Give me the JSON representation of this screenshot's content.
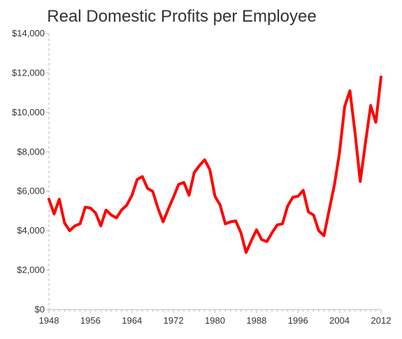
{
  "chart_data": {
    "type": "line",
    "title": "Real Domestic Profits per Employee",
    "xlabel": "",
    "ylabel": "",
    "xlim": [
      1948,
      2012
    ],
    "ylim": [
      0,
      14000
    ],
    "grid": false,
    "y_ticks": [
      0,
      2000,
      4000,
      6000,
      8000,
      10000,
      12000,
      14000
    ],
    "y_tick_labels": [
      "$0",
      "$2,000",
      "$4,000",
      "$6,000",
      "$8,000",
      "$10,000",
      "$12,000",
      "$14,000"
    ],
    "x_ticks": [
      1948,
      1956,
      1964,
      1972,
      1980,
      1988,
      1996,
      2004,
      2012
    ],
    "x_tick_labels": [
      "1948",
      "1956",
      "1964",
      "1972",
      "1980",
      "1988",
      "1996",
      "2004",
      "2012"
    ],
    "colors": {
      "series": "#ff0000",
      "axis": "#bbbbbb",
      "text": "#333333"
    },
    "series": [
      {
        "x": [
          1948,
          1949,
          1950,
          1951,
          1952,
          1953,
          1954,
          1955,
          1956,
          1957,
          1958,
          1959,
          1960,
          1961,
          1962,
          1963,
          1964,
          1965,
          1966,
          1967,
          1968,
          1969,
          1970,
          1971,
          1972,
          1973,
          1974,
          1975,
          1976,
          1977,
          1978,
          1979,
          1980,
          1981,
          1982,
          1983,
          1984,
          1985,
          1986,
          1987,
          1988,
          1989,
          1990,
          1991,
          1992,
          1993,
          1994,
          1995,
          1996,
          1997,
          1998,
          1999,
          2000,
          2001,
          2002,
          2003,
          2004,
          2005,
          2006,
          2007,
          2008,
          2009,
          2010,
          2011,
          2012
        ],
        "values": [
          5600,
          4850,
          5600,
          4400,
          4000,
          4250,
          4350,
          5200,
          5150,
          4900,
          4250,
          5050,
          4800,
          4650,
          5050,
          5300,
          5800,
          6600,
          6750,
          6150,
          6000,
          5150,
          4450,
          5100,
          5700,
          6350,
          6450,
          5800,
          6950,
          7300,
          7600,
          7100,
          5750,
          5300,
          4350,
          4450,
          4500,
          3900,
          2900,
          3500,
          4050,
          3550,
          3450,
          3900,
          4300,
          4350,
          5250,
          5700,
          5750,
          6050,
          4950,
          4800,
          4000,
          3750,
          5050,
          6300,
          7950,
          10300,
          11100,
          8950,
          6500,
          8450,
          10350,
          9500,
          11800
        ]
      }
    ]
  }
}
